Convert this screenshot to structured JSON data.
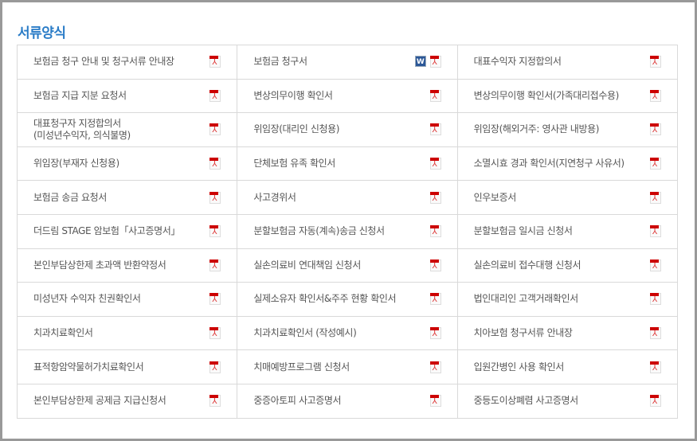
{
  "title": "서류양식",
  "colors": {
    "title": "#2a7cc7",
    "pdf_icon": "#cc0000",
    "word_icon": "#2b5797"
  },
  "documents": [
    [
      {
        "label": "보험금 청구 안내 및 청구서류 안내장",
        "icons": [
          "pdf"
        ]
      },
      {
        "label": "보험금 청구서",
        "icons": [
          "word",
          "pdf"
        ],
        "word_text": "W"
      },
      {
        "label": "대표수익자 지정합의서",
        "icons": [
          "pdf"
        ]
      }
    ],
    [
      {
        "label": "보험금 지급 지분 요청서",
        "icons": [
          "pdf"
        ]
      },
      {
        "label": "변상의무이행 확인서",
        "icons": [
          "pdf"
        ]
      },
      {
        "label": "변상의무이행 확인서(가족대리접수용)",
        "icons": [
          "pdf"
        ]
      }
    ],
    [
      {
        "label": "대표청구자 지정합의서\n(미성년수익자, 의식불명)",
        "icons": [
          "pdf"
        ]
      },
      {
        "label": "위임장(대리인 신청용)",
        "icons": [
          "pdf"
        ]
      },
      {
        "label": "위임장(해외거주: 영사관 내방용)",
        "icons": [
          "pdf"
        ]
      }
    ],
    [
      {
        "label": "위임장(부재자 신청용)",
        "icons": [
          "pdf"
        ]
      },
      {
        "label": "단체보험 유족 확인서",
        "icons": [
          "pdf"
        ]
      },
      {
        "label": "소멸시효 경과 확인서(지연청구 사유서)",
        "icons": [
          "pdf"
        ]
      }
    ],
    [
      {
        "label": "보험금 송금 요청서",
        "icons": [
          "pdf"
        ]
      },
      {
        "label": "사고경위서",
        "icons": [
          "pdf"
        ]
      },
      {
        "label": "인우보증서",
        "icons": [
          "pdf"
        ]
      }
    ],
    [
      {
        "label": "더드림 STAGE 암보험「사고증명서」",
        "icons": [
          "pdf"
        ]
      },
      {
        "label": "분할보험금 자동(계속)송금 신청서",
        "icons": [
          "pdf"
        ]
      },
      {
        "label": "분할보험금 일시금 신청서",
        "icons": [
          "pdf"
        ]
      }
    ],
    [
      {
        "label": "본인부담상한제 초과액 반환약정서",
        "icons": [
          "pdf"
        ]
      },
      {
        "label": "실손의료비 연대책임 신청서",
        "icons": [
          "pdf"
        ]
      },
      {
        "label": "실손의료비 접수대행 신청서",
        "icons": [
          "pdf"
        ]
      }
    ],
    [
      {
        "label": "미성년자 수익자 친권확인서",
        "icons": [
          "pdf"
        ]
      },
      {
        "label": "실제소유자 확인서&주주 현황 확인서",
        "icons": [
          "pdf"
        ]
      },
      {
        "label": "법인대리인 고객거래확인서",
        "icons": [
          "pdf"
        ]
      }
    ],
    [
      {
        "label": "치과치료확인서",
        "icons": [
          "pdf"
        ]
      },
      {
        "label": "치과치료확인서 (작성예시)",
        "icons": [
          "pdf"
        ]
      },
      {
        "label": "치아보험 청구서류 안내장",
        "icons": [
          "pdf"
        ]
      }
    ],
    [
      {
        "label": "표적항암약물허가치료확인서",
        "icons": [
          "pdf"
        ]
      },
      {
        "label": "치매예방프로그램 신청서",
        "icons": [
          "pdf"
        ]
      },
      {
        "label": "입원간병인 사용 확인서",
        "icons": [
          "pdf"
        ]
      }
    ],
    [
      {
        "label": "본인부담상한제 공제금 지급신청서",
        "icons": [
          "pdf"
        ]
      },
      {
        "label": "중증아토피 사고증명서",
        "icons": [
          "pdf"
        ]
      },
      {
        "label": "중등도이상폐렴 사고증명서",
        "icons": [
          "pdf"
        ]
      }
    ]
  ]
}
